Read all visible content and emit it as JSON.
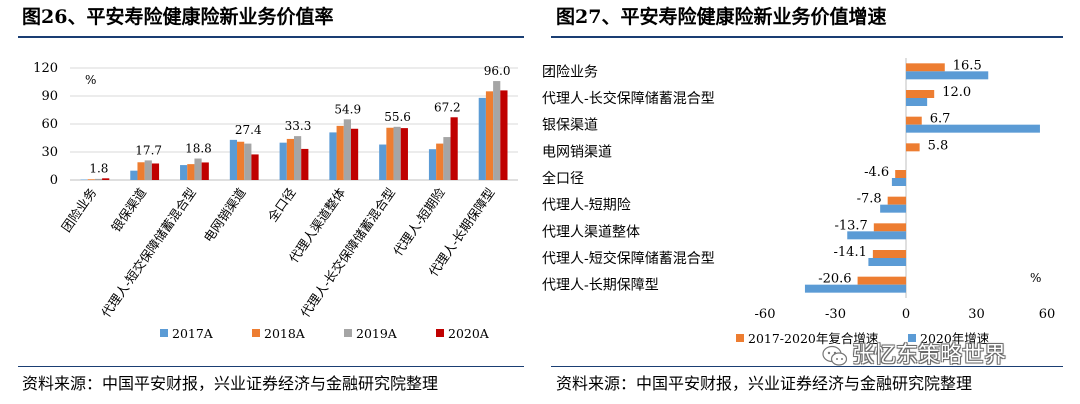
{
  "left": {
    "title": "图26、平安寿险健康险新业务价值率",
    "source": "资料来源：中国平安财报，兴业证券经济与金融研究院整理"
  },
  "right": {
    "title": "图27、平安寿险健康险新业务价值增速",
    "source": "资料来源：中国平安财报，兴业证券经济与金融研究院整理"
  },
  "watermark": {
    "text": "张忆东策略世界"
  },
  "colors": {
    "rule": "#1a3e73",
    "blue": "#5b9bd5",
    "orange": "#ed7d31",
    "gray": "#a5a5a5",
    "red": "#c00000"
  },
  "chart_data": [
    {
      "type": "bar",
      "unit_label": "%",
      "ylim": [
        0,
        120
      ],
      "yticks": [
        0,
        30,
        60,
        90,
        120
      ],
      "categories": [
        "团险业务",
        "银保渠道",
        "代理人-短交保障储蓄混合型",
        "电网销渠道",
        "全口径",
        "代理人渠道整体",
        "代理人-长交保障储蓄混合型",
        "代理人-短期险",
        "代理人-长期保障型"
      ],
      "series": [
        {
          "name": "2017A",
          "color": "#5b9bd5",
          "values": [
            0.5,
            10,
            16,
            43,
            40,
            51,
            38,
            33,
            88
          ]
        },
        {
          "name": "2018A",
          "color": "#ed7d31",
          "values": [
            0.8,
            19,
            17,
            41,
            44,
            58,
            56,
            39,
            95
          ]
        },
        {
          "name": "2019A",
          "color": "#a5a5a5",
          "values": [
            1.2,
            21,
            23,
            39,
            47,
            65,
            57,
            46,
            106
          ]
        },
        {
          "name": "2020A",
          "color": "#c00000",
          "values": [
            1.8,
            17.7,
            18.8,
            27.4,
            33.3,
            54.9,
            55.6,
            67.2,
            96.0
          ]
        }
      ],
      "data_labels": [
        "1.8",
        "17.7",
        "18.8",
        "27.4",
        "33.3",
        "54.9",
        "55.6",
        "67.2",
        "96.0"
      ]
    },
    {
      "type": "bar",
      "orientation": "horizontal",
      "unit_label": "%",
      "xlim": [
        -60,
        60
      ],
      "xticks": [
        -60,
        -30,
        0,
        30,
        60
      ],
      "categories": [
        "团险业务",
        "代理人-长交保障储蓄混合型",
        "银保渠道",
        "电网销渠道",
        "全口径",
        "代理人-短期险",
        "代理人渠道整体",
        "代理人-短交保障储蓄混合型",
        "代理人-长期保障型"
      ],
      "series": [
        {
          "name": "2017-2020年复合增速",
          "color": "#ed7d31",
          "values": [
            16.5,
            12.0,
            6.7,
            5.8,
            -4.6,
            -7.8,
            -13.7,
            -14.1,
            -20.6
          ]
        },
        {
          "name": "2020年增速",
          "color": "#5b9bd5",
          "values": [
            35,
            9,
            57,
            null,
            -6,
            -11,
            -25,
            -16,
            -43
          ]
        }
      ],
      "data_labels": [
        "16.5",
        "12.0",
        "6.7",
        "5.8",
        "-4.6",
        "-7.8",
        "-13.7",
        "-14.1",
        "-20.6"
      ],
      "legend_display": [
        "2017-2020年复合增速",
        "2020年增速"
      ]
    }
  ]
}
